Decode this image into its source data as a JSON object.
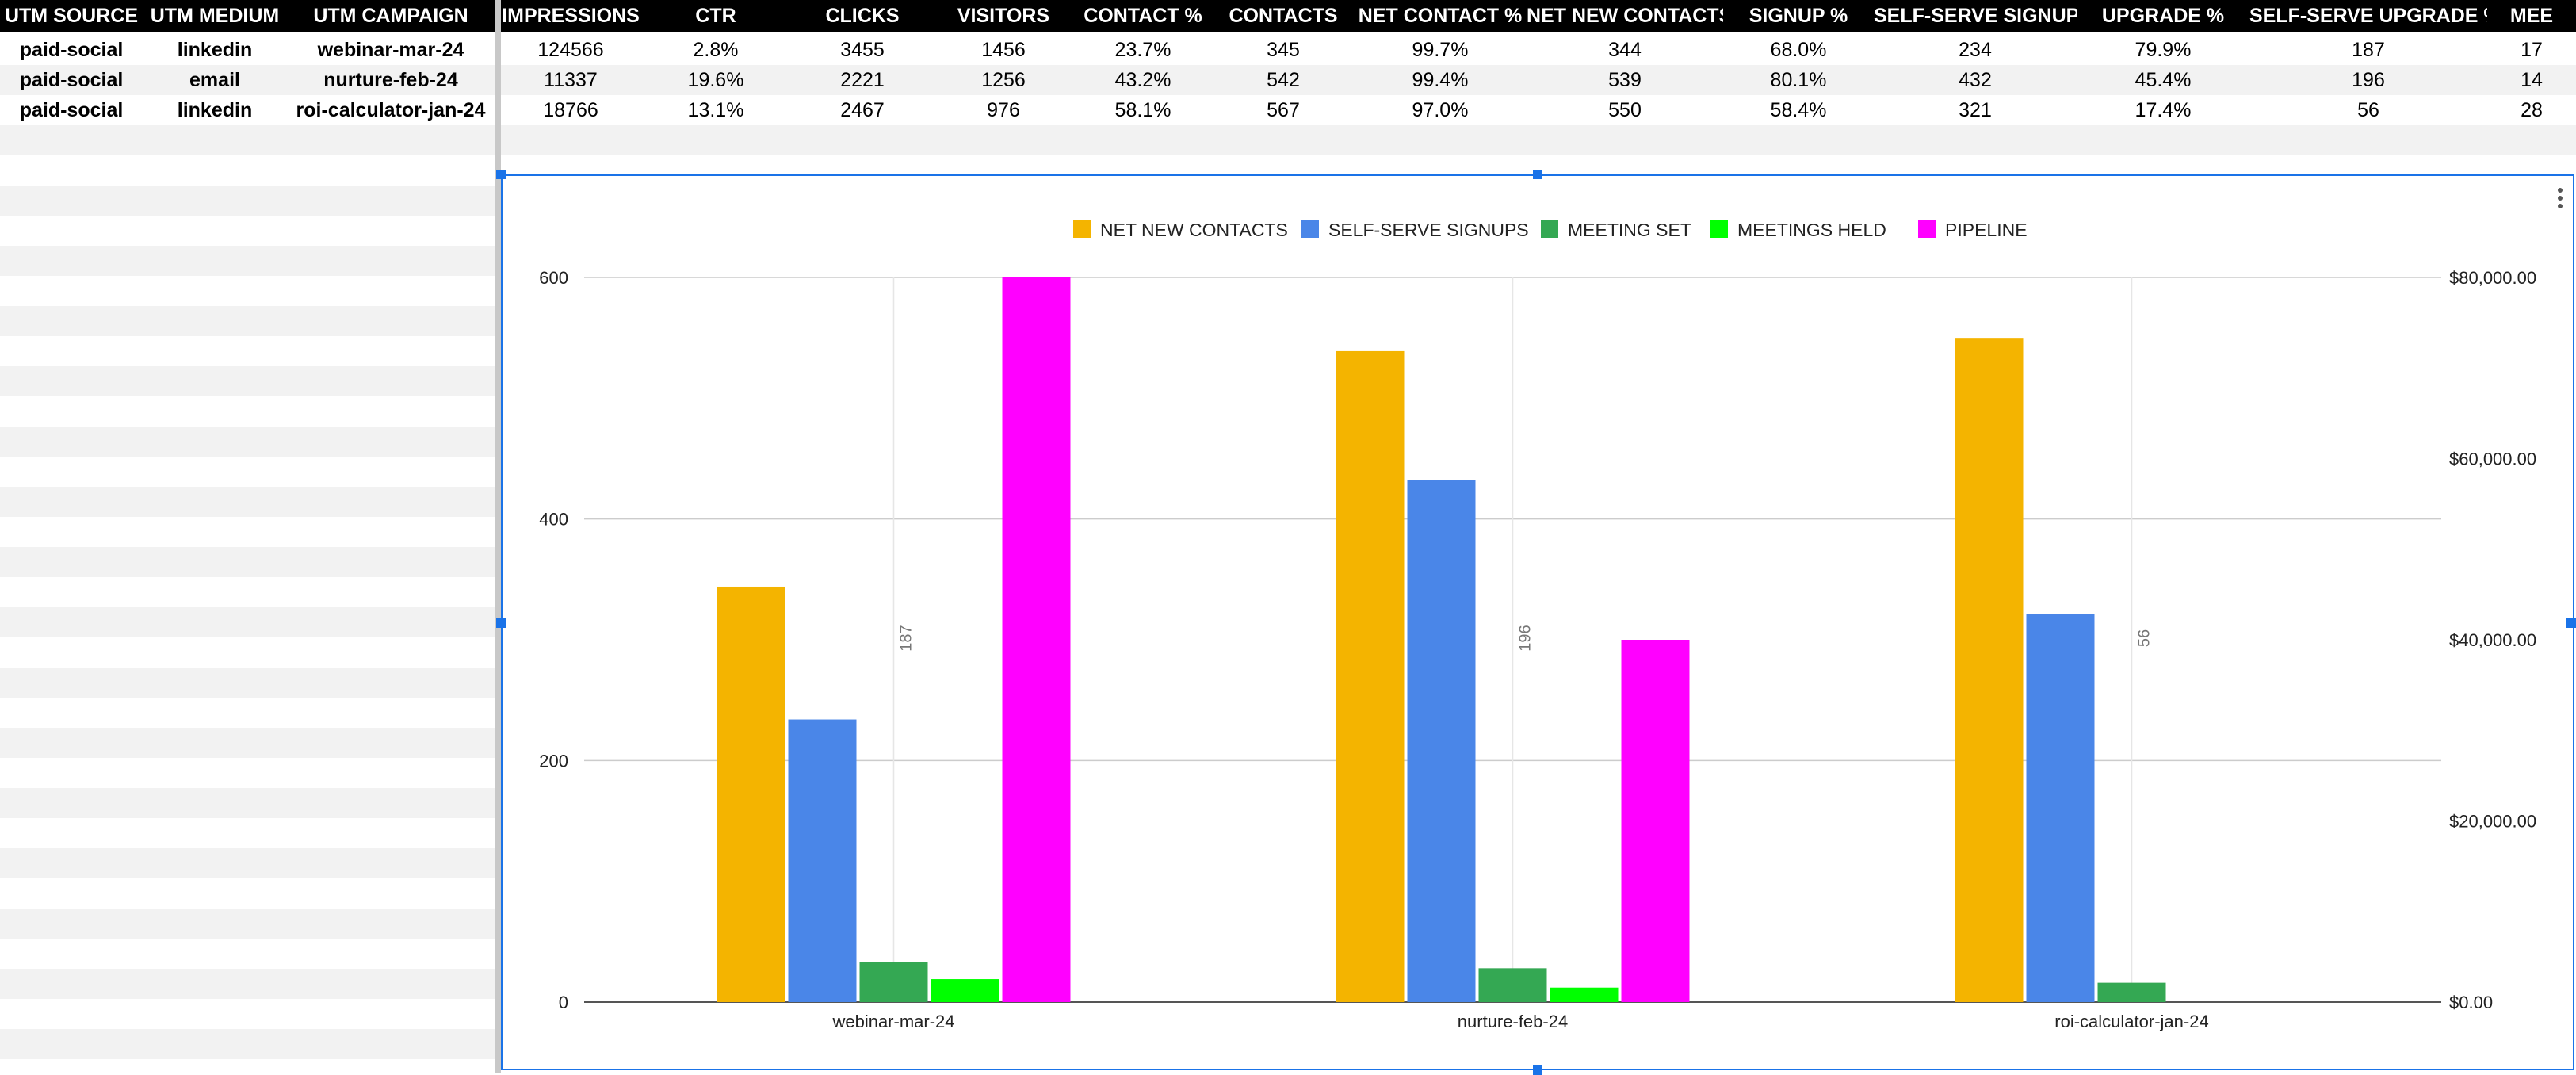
{
  "sheet": {
    "left_headers": [
      "UTM SOURCE",
      "UTM MEDIUM",
      "UTM CAMPAIGN"
    ],
    "right_headers": [
      "IMPRESSIONS",
      "CTR",
      "CLICKS",
      "VISITORS",
      "CONTACT %",
      "CONTACTS",
      "NET CONTACT %",
      "NET NEW CONTACTS",
      "SIGNUP %",
      "SELF-SERVE SIGNUPS",
      "UPGRADE %",
      "SELF-SERVE UPGRADE %",
      "MEE"
    ],
    "rows": [
      {
        "left": [
          "paid-social",
          "linkedin",
          "webinar-mar-24"
        ],
        "right": [
          "124566",
          "2.8%",
          "3455",
          "1456",
          "23.7%",
          "345",
          "99.7%",
          "344",
          "68.0%",
          "234",
          "79.9%",
          "187",
          "17"
        ]
      },
      {
        "left": [
          "paid-social",
          "email",
          "nurture-feb-24"
        ],
        "right": [
          "11337",
          "19.6%",
          "2221",
          "1256",
          "43.2%",
          "542",
          "99.4%",
          "539",
          "80.1%",
          "432",
          "45.4%",
          "196",
          "14"
        ]
      },
      {
        "left": [
          "paid-social",
          "linkedin",
          "roi-calculator-jan-24"
        ],
        "right": [
          "18766",
          "13.1%",
          "2467",
          "976",
          "58.1%",
          "567",
          "97.0%",
          "550",
          "58.4%",
          "321",
          "17.4%",
          "56",
          "28"
        ]
      }
    ]
  },
  "chart_data": {
    "type": "bar",
    "categories": [
      "webinar-mar-24",
      "nurture-feb-24",
      "roi-calculator-jan-24"
    ],
    "series": [
      {
        "name": "NET NEW CONTACTS",
        "values": [
          344,
          539,
          550
        ],
        "color": "#f4b400",
        "axis": "left"
      },
      {
        "name": "SELF-SERVE SIGNUPS",
        "values": [
          234,
          432,
          321
        ],
        "color": "#4a86e8",
        "axis": "left"
      },
      {
        "name": "MEETING SET",
        "values": [
          33,
          28,
          16
        ],
        "color": "#34a853",
        "axis": "left"
      },
      {
        "name": "MEETINGS HELD",
        "values": [
          19,
          12,
          0
        ],
        "color": "#00ff00",
        "axis": "left"
      },
      {
        "name": "PIPELINE",
        "values": [
          80000,
          40000,
          0
        ],
        "color": "#ff00ff",
        "axis": "right"
      }
    ],
    "annotations": [
      {
        "category": "webinar-mar-24",
        "text": "187"
      },
      {
        "category": "nurture-feb-24",
        "text": "196"
      },
      {
        "category": "roi-calculator-jan-24",
        "text": "56"
      }
    ],
    "y_left": {
      "ticks": [
        "0",
        "200",
        "400",
        "600"
      ],
      "range": [
        0,
        600
      ]
    },
    "y_right": {
      "ticks": [
        "$0.00",
        "$20,000.00",
        "$40,000.00",
        "$60,000.00",
        "$80,000.00"
      ],
      "range": [
        0,
        80000
      ]
    },
    "legend_position": "top",
    "grid": true
  }
}
